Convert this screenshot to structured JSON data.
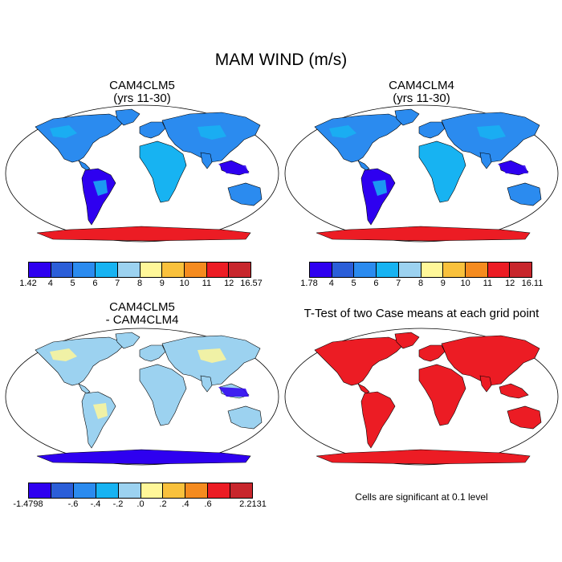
{
  "main_title": "MAM WIND (m/s)",
  "panels": [
    {
      "title1": "CAM4CLM5",
      "title2": "(yrs 11-30)",
      "scheme": "wind"
    },
    {
      "title1": "CAM4CLM4",
      "title2": "(yrs 11-30)",
      "scheme": "wind"
    },
    {
      "title1": "CAM4CLM5",
      "title2": "- CAM4CLM4",
      "scheme": "diff"
    },
    {
      "title1": "T-Test of two Case means at each grid point",
      "title2": "",
      "scheme": "sig"
    }
  ],
  "colorbars": [
    {
      "colors": [
        "#2e00f0",
        "#2b5ed8",
        "#2b8bef",
        "#17b3f2",
        "#9cd2f0",
        "#fff799",
        "#f9c13c",
        "#f58b1f",
        "#ec1c24",
        "#c8262c"
      ],
      "ticks": [
        "1.42",
        "4",
        "5",
        "6",
        "7",
        "8",
        "9",
        "10",
        "11",
        "12",
        "16.57"
      ]
    },
    {
      "colors": [
        "#2e00f0",
        "#2b5ed8",
        "#2b8bef",
        "#17b3f2",
        "#9cd2f0",
        "#fff799",
        "#f9c13c",
        "#f58b1f",
        "#ec1c24",
        "#c8262c"
      ],
      "ticks": [
        "1.78",
        "4",
        "5",
        "6",
        "7",
        "8",
        "9",
        "10",
        "11",
        "12",
        "16.11"
      ]
    },
    {
      "colors": [
        "#2e00f0",
        "#2b5ed8",
        "#2b8bef",
        "#17b3f2",
        "#9cd2f0",
        "#fff799",
        "#f9c13c",
        "#f58b1f",
        "#ec1c24",
        "#c8262c"
      ],
      "ticks": [
        "-1.4798",
        "",
        "-.6",
        "-.4",
        "-.2",
        ".0",
        ".2",
        ".4",
        ".6",
        "",
        "2.2131"
      ]
    }
  ],
  "note": "Cells are significant at 0.1 level",
  "colors": {
    "ocean": "#ffffff",
    "land_wind": "#2b8bef",
    "land_wind_alt": "#17b3f2",
    "tropics_wind": "#2e00f0",
    "diff_land": "#9cd2f0",
    "diff_alt": "#fff799",
    "sig": "#ec1c24"
  }
}
